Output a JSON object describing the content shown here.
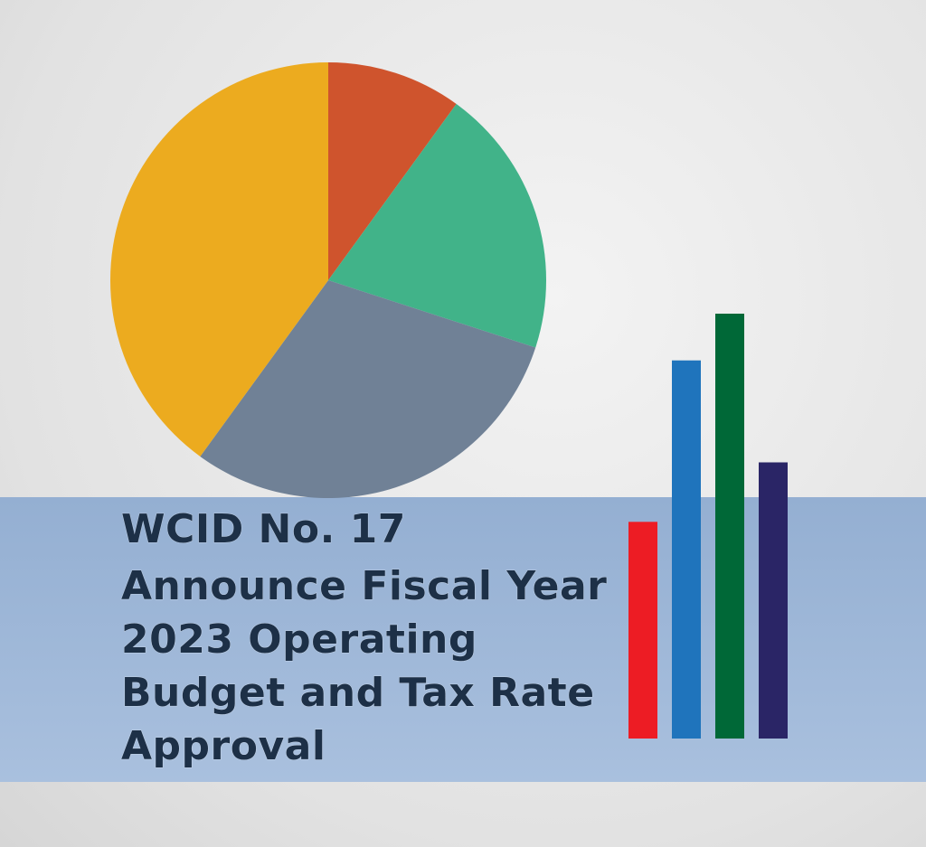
{
  "headline": {
    "lines": [
      "WCID No. 17",
      "Announce Fiscal Year",
      "2023 Operating",
      "Budget and Tax Rate",
      "Approval"
    ]
  },
  "chart_data": [
    {
      "type": "pie",
      "values": [
        10,
        20,
        30,
        40
      ],
      "colors": [
        "#cf542d",
        "#41b389",
        "#708196",
        "#ecab1f"
      ]
    },
    {
      "type": "bar",
      "categories": [
        null,
        null,
        null,
        null
      ],
      "values": [
        51,
        89,
        100,
        65
      ],
      "colors": [
        "#ed1c24",
        "#1f74bc",
        "#006837",
        "#2a2566"
      ],
      "ylim": [
        0,
        100
      ]
    }
  ]
}
